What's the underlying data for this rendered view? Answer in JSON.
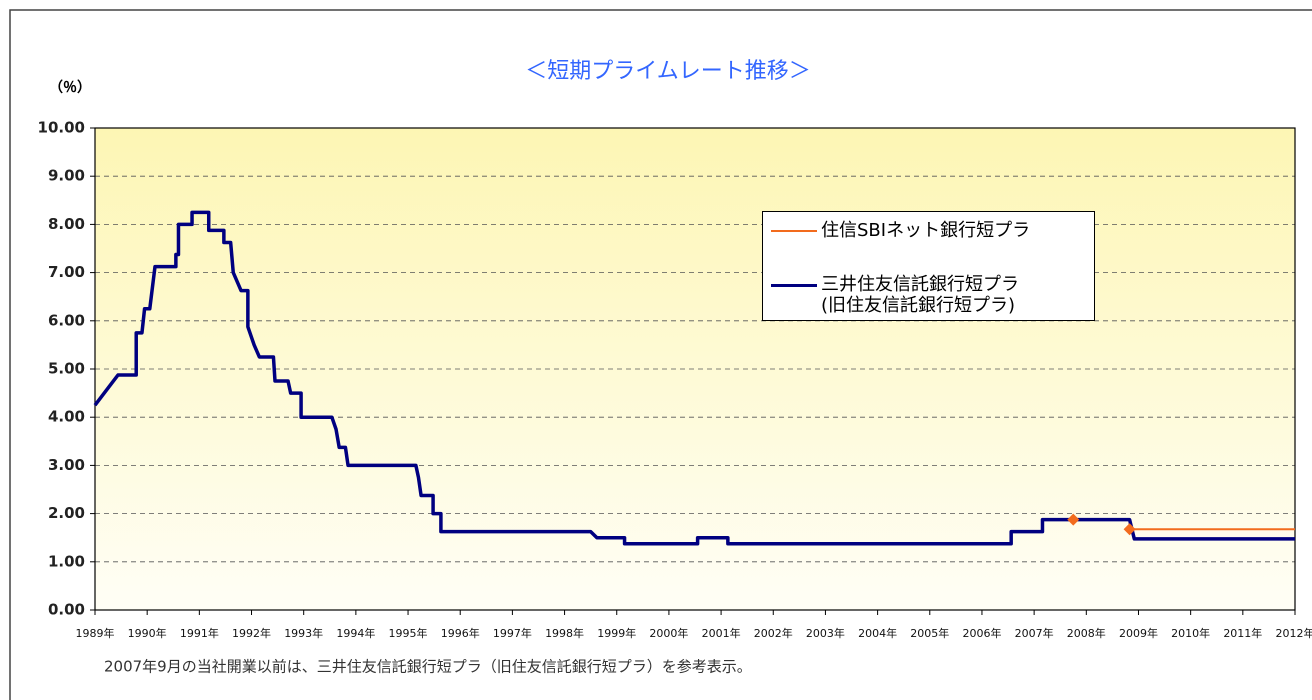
{
  "chart_data": {
    "type": "line",
    "title": "＜短期プライムレート推移＞",
    "y_label": "（％）",
    "note": "2007年9月の当社開業以前は、三井住友信託銀行短プラ（旧住友信託銀行短プラ）を参考表示。",
    "xlim": [
      1989,
      2012
    ],
    "xticks": [
      {
        "value": 1989,
        "label": "1989年"
      },
      {
        "value": 1990,
        "label": "1990年"
      },
      {
        "value": 1991,
        "label": "1991年"
      },
      {
        "value": 1992,
        "label": "1992年"
      },
      {
        "value": 1993,
        "label": "1993年"
      },
      {
        "value": 1994,
        "label": "1994年"
      },
      {
        "value": 1995,
        "label": "1995年"
      },
      {
        "value": 1996,
        "label": "1996年"
      },
      {
        "value": 1997,
        "label": "1997年"
      },
      {
        "value": 1998,
        "label": "1998年"
      },
      {
        "value": 1999,
        "label": "1999年"
      },
      {
        "value": 2000,
        "label": "2000年"
      },
      {
        "value": 2001,
        "label": "2001年"
      },
      {
        "value": 2002,
        "label": "2002年"
      },
      {
        "value": 2003,
        "label": "2003年"
      },
      {
        "value": 2004,
        "label": "2004年"
      },
      {
        "value": 2005,
        "label": "2005年"
      },
      {
        "value": 2006,
        "label": "2006年"
      },
      {
        "value": 2007,
        "label": "2007年"
      },
      {
        "value": 2008,
        "label": "2008年"
      },
      {
        "value": 2009,
        "label": "2009年"
      },
      {
        "value": 2010,
        "label": "2010年"
      },
      {
        "value": 2011,
        "label": "2011年"
      },
      {
        "value": 2012,
        "label": "2012年"
      }
    ],
    "ylim": [
      0,
      10
    ],
    "yticks": [
      {
        "value": 0,
        "label": "0.00"
      },
      {
        "value": 1,
        "label": "1.00"
      },
      {
        "value": 2,
        "label": "2.00"
      },
      {
        "value": 3,
        "label": "3.00"
      },
      {
        "value": 4,
        "label": "4.00"
      },
      {
        "value": 5,
        "label": "5.00"
      },
      {
        "value": 6,
        "label": "6.00"
      },
      {
        "value": 7,
        "label": "7.00"
      },
      {
        "value": 8,
        "label": "8.00"
      },
      {
        "value": 9,
        "label": "9.00"
      },
      {
        "value": 10,
        "label": "10.00"
      }
    ],
    "grid": true,
    "legend": "upper right",
    "series": [
      {
        "name": "住信SBIネット銀行短プラ",
        "color": "#f26b1d",
        "width": 2,
        "marker_indices": [
          0,
          2
        ],
        "x": [
          2007.75,
          2008.83,
          2008.83,
          2012
        ],
        "values": [
          1.875,
          1.875,
          1.675,
          1.675
        ]
      },
      {
        "name": "三井住友信託銀行短プラ\n(旧住友信託銀行短プラ)",
        "color": "#000080",
        "width": 3.5,
        "x": [
          1989.0,
          1989.44,
          1989.79,
          1989.79,
          1989.9,
          1989.95,
          1990.05,
          1990.15,
          1990.55,
          1990.55,
          1990.6,
          1990.6,
          1990.86,
          1990.86,
          1991.18,
          1991.18,
          1991.47,
          1991.47,
          1991.6,
          1991.65,
          1991.8,
          1991.93,
          1991.93,
          1992.05,
          1992.15,
          1992.42,
          1992.45,
          1992.7,
          1992.75,
          1992.88,
          1992.95,
          1992.95,
          1993.54,
          1993.62,
          1993.68,
          1993.8,
          1993.85,
          1995.15,
          1995.2,
          1995.25,
          1995.48,
          1995.48,
          1995.63,
          1995.63,
          1998.5,
          1998.62,
          1999.15,
          1999.15,
          2000.55,
          2000.55,
          2001.13,
          2001.13,
          2006.56,
          2006.56,
          2007.16,
          2007.16,
          2008.83,
          2008.92,
          2012
        ],
        "values": [
          4.25,
          4.875,
          4.875,
          5.75,
          5.75,
          6.25,
          6.25,
          7.125,
          7.125,
          7.375,
          7.375,
          8.0,
          8.0,
          8.25,
          8.25,
          7.875,
          7.875,
          7.625,
          7.625,
          7.0,
          6.625,
          6.625,
          5.875,
          5.5,
          5.25,
          5.25,
          4.75,
          4.75,
          4.5,
          4.5,
          4.5,
          4.0,
          4.0,
          3.75,
          3.375,
          3.375,
          3.0,
          3.0,
          2.75,
          2.375,
          2.375,
          2.0,
          2.0,
          1.625,
          1.625,
          1.5,
          1.5,
          1.375,
          1.375,
          1.5,
          1.5,
          1.375,
          1.375,
          1.625,
          1.625,
          1.875,
          1.875,
          1.475,
          1.475
        ]
      }
    ]
  }
}
